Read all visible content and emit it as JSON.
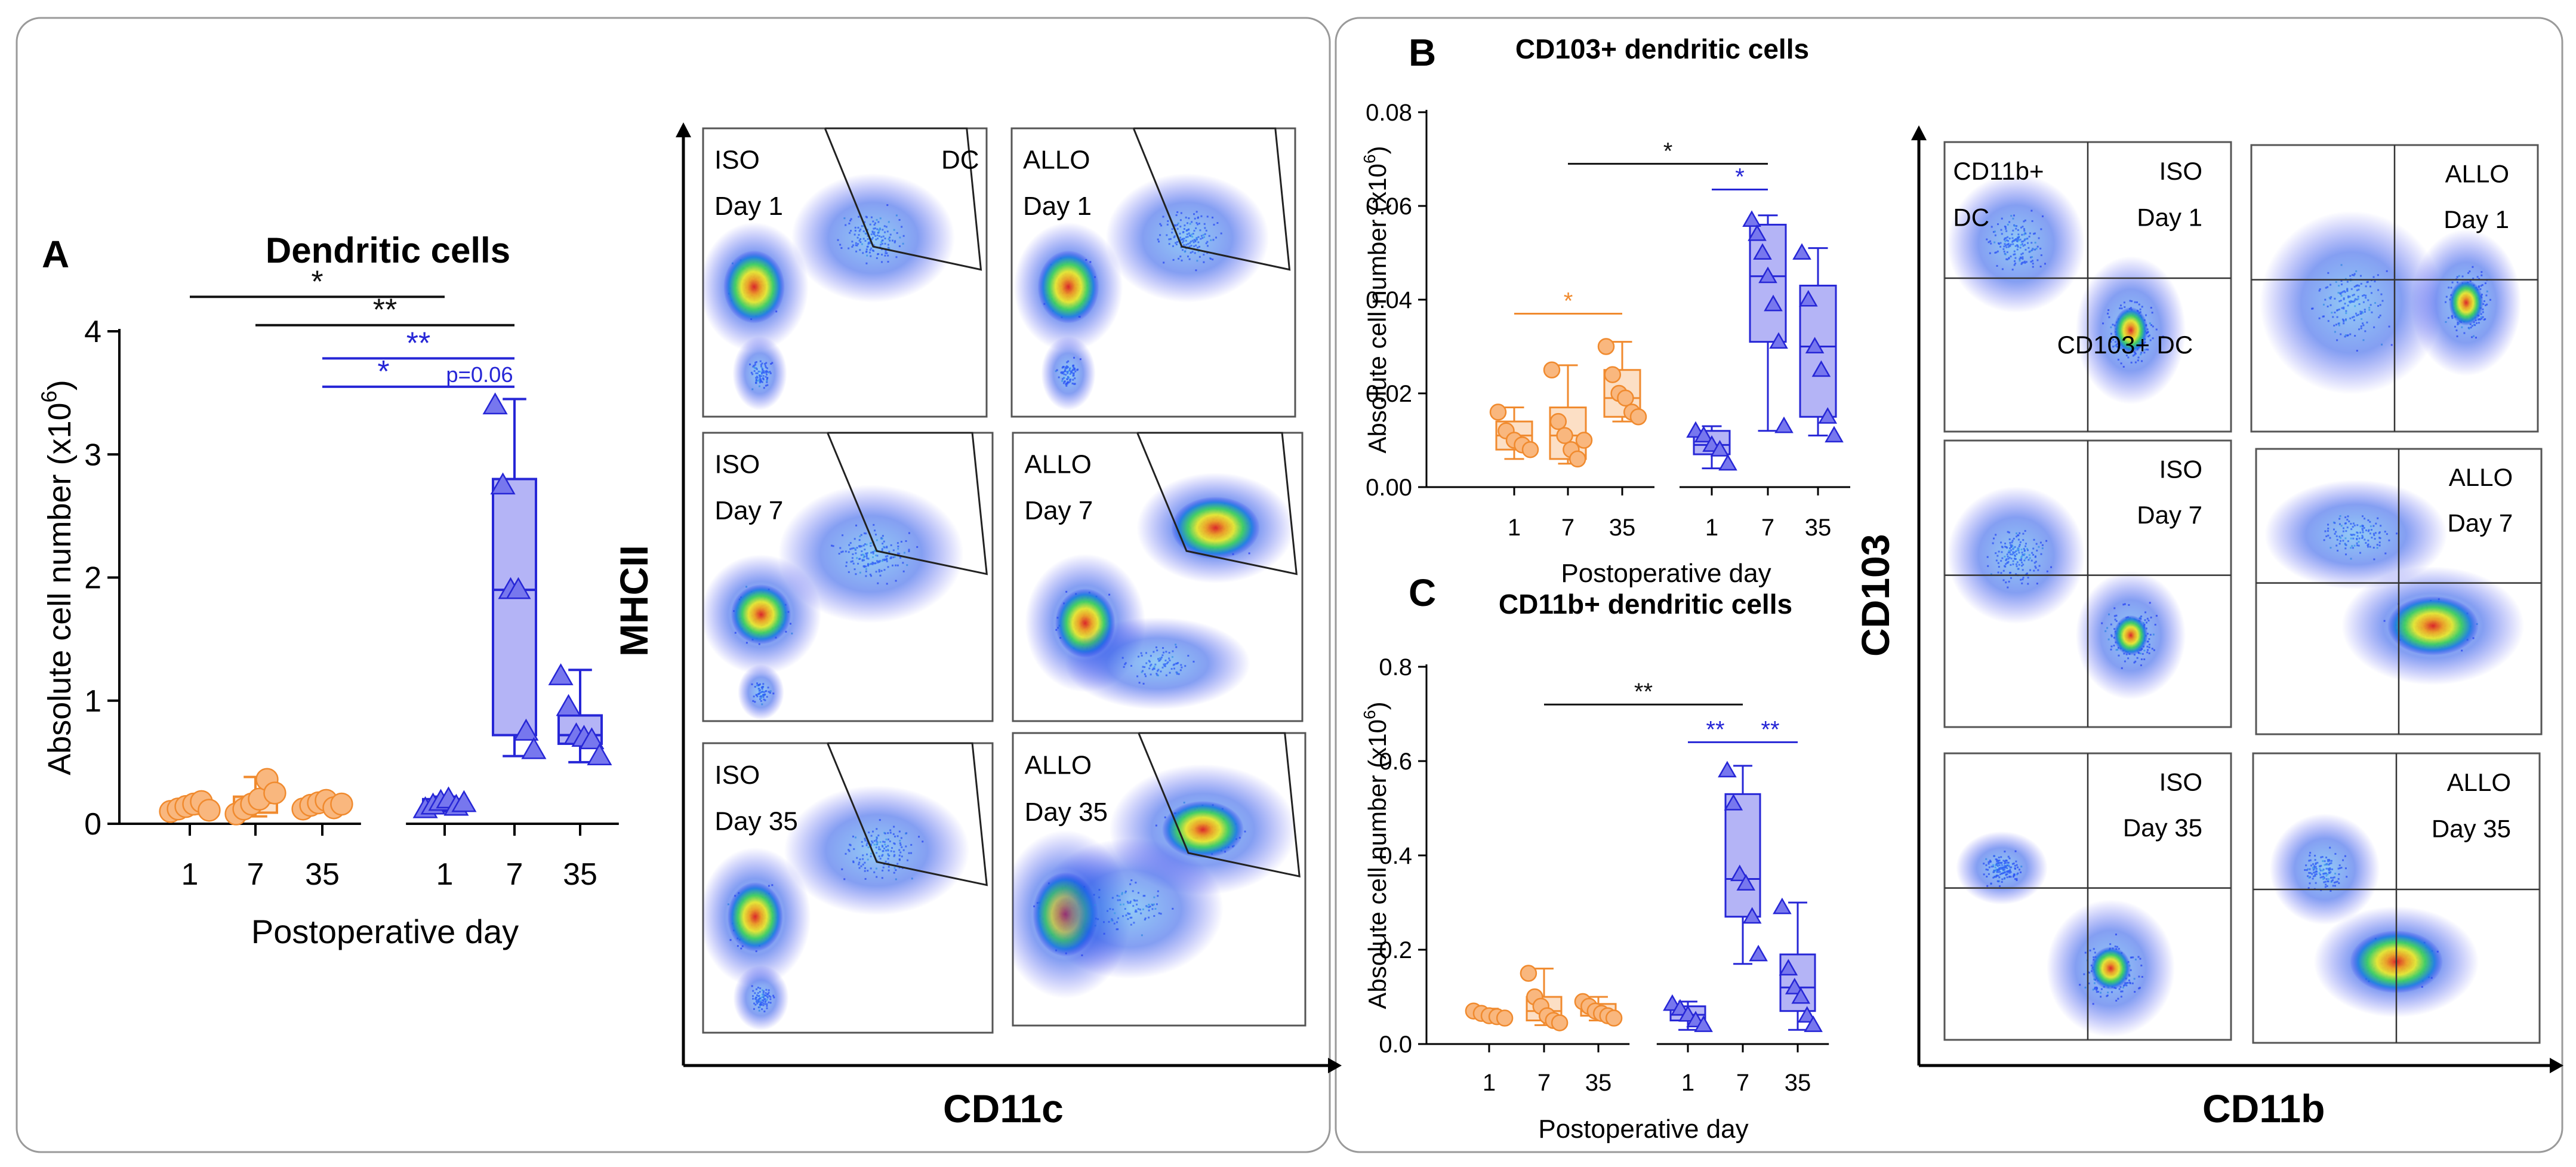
{
  "colors": {
    "iso_fill": "#F9B77E",
    "iso_stroke": "#F08A2E",
    "allo_fill": "#7777EE",
    "allo_stroke": "#2626D6",
    "black": "#111111",
    "frame": "#8a8a8a"
  },
  "panelA": {
    "letter": "A",
    "ylabel_main": "Absolute cell number (x10",
    "ylabel_sup": "6",
    "ylabel_close": ")",
    "flow_xlabel": "CD11c",
    "flow_ylabel": "MHCII",
    "flow_plots": [
      {
        "group": "ISO",
        "day": "Day 1",
        "gate": "DC"
      },
      {
        "group": "ALLO",
        "day": "Day 1",
        "gate": ""
      },
      {
        "group": "ISO",
        "day": "Day 7",
        "gate": ""
      },
      {
        "group": "ALLO",
        "day": "Day 7",
        "gate": ""
      },
      {
        "group": "ISO",
        "day": "Day 35",
        "gate": ""
      },
      {
        "group": "ALLO",
        "day": "Day 35",
        "gate": ""
      }
    ]
  },
  "panelB": {
    "letter": "B",
    "flow_xlabel": "CD11b",
    "flow_ylabel": "CD103",
    "flow_plots": [
      {
        "group": "ISO",
        "day": "Day 1",
        "q_upper_left": "CD11b+",
        "q_upper_left2": "DC",
        "q_lower": "CD103+ DC"
      },
      {
        "group": "ALLO",
        "day": "Day 1"
      },
      {
        "group": "ISO",
        "day": "Day 7"
      },
      {
        "group": "ALLO",
        "day": "Day 7"
      },
      {
        "group": "ISO",
        "day": "Day 35"
      },
      {
        "group": "ALLO",
        "day": "Day 35"
      }
    ]
  },
  "panelC": {
    "letter": "C"
  },
  "chart_data": [
    {
      "id": "A",
      "type": "box",
      "title": "Dendritic cells",
      "xlabel": "Postoperative day",
      "ylabel": "Absolute cell number (x10^6)",
      "ylim": [
        0,
        4
      ],
      "yticks": [
        0,
        1,
        2,
        3,
        4
      ],
      "categories": [
        "1",
        "7",
        "35",
        "1",
        "7",
        "35"
      ],
      "groups": [
        "ISO",
        "ISO",
        "ISO",
        "ALLO",
        "ALLO",
        "ALLO"
      ],
      "boxes": [
        {
          "min": 0.08,
          "q1": 0.1,
          "median": 0.13,
          "q3": 0.17,
          "max": 0.19,
          "points": [
            0.1,
            0.12,
            0.14,
            0.16,
            0.18,
            0.11
          ]
        },
        {
          "min": 0.06,
          "q1": 0.09,
          "median": 0.17,
          "q3": 0.22,
          "max": 0.38,
          "points": [
            0.08,
            0.12,
            0.16,
            0.2,
            0.36,
            0.25
          ]
        },
        {
          "min": 0.1,
          "q1": 0.11,
          "median": 0.14,
          "q3": 0.18,
          "max": 0.2,
          "points": [
            0.12,
            0.15,
            0.17,
            0.19,
            0.13,
            0.16
          ]
        },
        {
          "min": 0.1,
          "q1": 0.12,
          "median": 0.16,
          "q3": 0.2,
          "max": 0.22,
          "points": [
            0.12,
            0.15,
            0.18,
            0.2,
            0.14,
            0.17
          ]
        },
        {
          "min": 0.55,
          "q1": 0.72,
          "median": 1.9,
          "q3": 2.8,
          "max": 3.45,
          "points": [
            3.4,
            2.75,
            1.9,
            1.9,
            0.75,
            0.6
          ]
        },
        {
          "min": 0.5,
          "q1": 0.65,
          "median": 0.72,
          "q3": 0.88,
          "max": 1.25,
          "points": [
            1.2,
            0.95,
            0.72,
            0.7,
            0.68,
            0.55
          ]
        }
      ],
      "significance": [
        {
          "from": 1,
          "to": 4,
          "label": "*",
          "color": "black",
          "y": 4.28
        },
        {
          "from": 2,
          "to": 5,
          "label": "**",
          "color": "black",
          "y": 4.05
        },
        {
          "from": 3,
          "to": 5,
          "label": "**",
          "color": "allo",
          "y": 3.78
        },
        {
          "from": 3,
          "to": 4,
          "label": "*",
          "color": "allo",
          "y": 3.55
        },
        {
          "from": 4,
          "to": 5,
          "label": "p=0.06",
          "color": "allo",
          "y": 3.55
        }
      ]
    },
    {
      "id": "B",
      "type": "box",
      "title": "CD103+ dendritic cells",
      "xlabel": "Postoperative day",
      "ylabel": "Absolute cell number (x10^6)",
      "ylim": [
        0,
        0.08
      ],
      "yticks": [
        "0.00",
        "0.02",
        "0.04",
        "0.06",
        "0.08"
      ],
      "categories": [
        "1",
        "7",
        "35",
        "1",
        "7",
        "35"
      ],
      "groups": [
        "ISO",
        "ISO",
        "ISO",
        "ALLO",
        "ALLO",
        "ALLO"
      ],
      "boxes": [
        {
          "min": 0.006,
          "q1": 0.008,
          "median": 0.011,
          "q3": 0.014,
          "max": 0.017,
          "points": [
            0.016,
            0.012,
            0.01,
            0.009,
            0.008
          ]
        },
        {
          "min": 0.005,
          "q1": 0.006,
          "median": 0.011,
          "q3": 0.017,
          "max": 0.026,
          "points": [
            0.025,
            0.014,
            0.011,
            0.008,
            0.006,
            0.01
          ]
        },
        {
          "min": 0.014,
          "q1": 0.015,
          "median": 0.019,
          "q3": 0.025,
          "max": 0.031,
          "points": [
            0.03,
            0.024,
            0.02,
            0.019,
            0.016,
            0.015
          ]
        },
        {
          "min": 0.004,
          "q1": 0.007,
          "median": 0.009,
          "q3": 0.012,
          "max": 0.013,
          "points": [
            0.012,
            0.011,
            0.009,
            0.008,
            0.005
          ]
        },
        {
          "min": 0.012,
          "q1": 0.031,
          "median": 0.045,
          "q3": 0.056,
          "max": 0.058,
          "points": [
            0.057,
            0.054,
            0.05,
            0.045,
            0.039,
            0.031,
            0.013
          ]
        },
        {
          "min": 0.011,
          "q1": 0.015,
          "median": 0.03,
          "q3": 0.043,
          "max": 0.051,
          "points": [
            0.05,
            0.04,
            0.03,
            0.025,
            0.015,
            0.011
          ]
        }
      ],
      "significance": [
        {
          "from": 2,
          "to": 5,
          "label": "*",
          "color": "black",
          "y": 0.069
        },
        {
          "from": 4,
          "to": 5,
          "label": "*",
          "color": "allo",
          "y": 0.0635
        },
        {
          "from": 1,
          "to": 3,
          "label": "*",
          "color": "iso",
          "y": 0.037
        }
      ]
    },
    {
      "id": "C",
      "type": "box",
      "title": "CD11b+ dendritic cells",
      "xlabel": "Postoperative day",
      "ylabel": "Absolute cell number (x10^6)",
      "ylim": [
        0,
        0.8
      ],
      "yticks": [
        "0.0",
        "0.2",
        "0.4",
        "0.6",
        "0.8"
      ],
      "categories": [
        "1",
        "7",
        "35",
        "1",
        "7",
        "35"
      ],
      "groups": [
        "ISO",
        "ISO",
        "ISO",
        "ALLO",
        "ALLO",
        "ALLO"
      ],
      "boxes": [
        {
          "min": 0.05,
          "q1": 0.055,
          "median": 0.063,
          "q3": 0.07,
          "max": 0.075,
          "points": [
            0.07,
            0.065,
            0.06,
            0.058,
            0.055
          ]
        },
        {
          "min": 0.04,
          "q1": 0.05,
          "median": 0.07,
          "q3": 0.1,
          "max": 0.16,
          "points": [
            0.15,
            0.1,
            0.08,
            0.06,
            0.05,
            0.045
          ]
        },
        {
          "min": 0.05,
          "q1": 0.06,
          "median": 0.07,
          "q3": 0.085,
          "max": 0.1,
          "points": [
            0.09,
            0.08,
            0.07,
            0.065,
            0.06,
            0.055
          ]
        },
        {
          "min": 0.03,
          "q1": 0.05,
          "median": 0.062,
          "q3": 0.08,
          "max": 0.09,
          "points": [
            0.085,
            0.075,
            0.062,
            0.05,
            0.04
          ]
        },
        {
          "min": 0.17,
          "q1": 0.27,
          "median": 0.35,
          "q3": 0.53,
          "max": 0.59,
          "points": [
            0.58,
            0.51,
            0.36,
            0.34,
            0.27,
            0.19
          ]
        },
        {
          "min": 0.03,
          "q1": 0.07,
          "median": 0.12,
          "q3": 0.19,
          "max": 0.3,
          "points": [
            0.29,
            0.16,
            0.12,
            0.1,
            0.06,
            0.04
          ]
        }
      ],
      "significance": [
        {
          "from": 2,
          "to": 5,
          "label": "**",
          "color": "black",
          "y": 0.72
        },
        {
          "from": 4,
          "to": 5,
          "label": "**",
          "color": "allo",
          "y": 0.64
        },
        {
          "from": 5,
          "to": 6,
          "label": "**",
          "color": "allo",
          "y": 0.64
        }
      ]
    }
  ]
}
